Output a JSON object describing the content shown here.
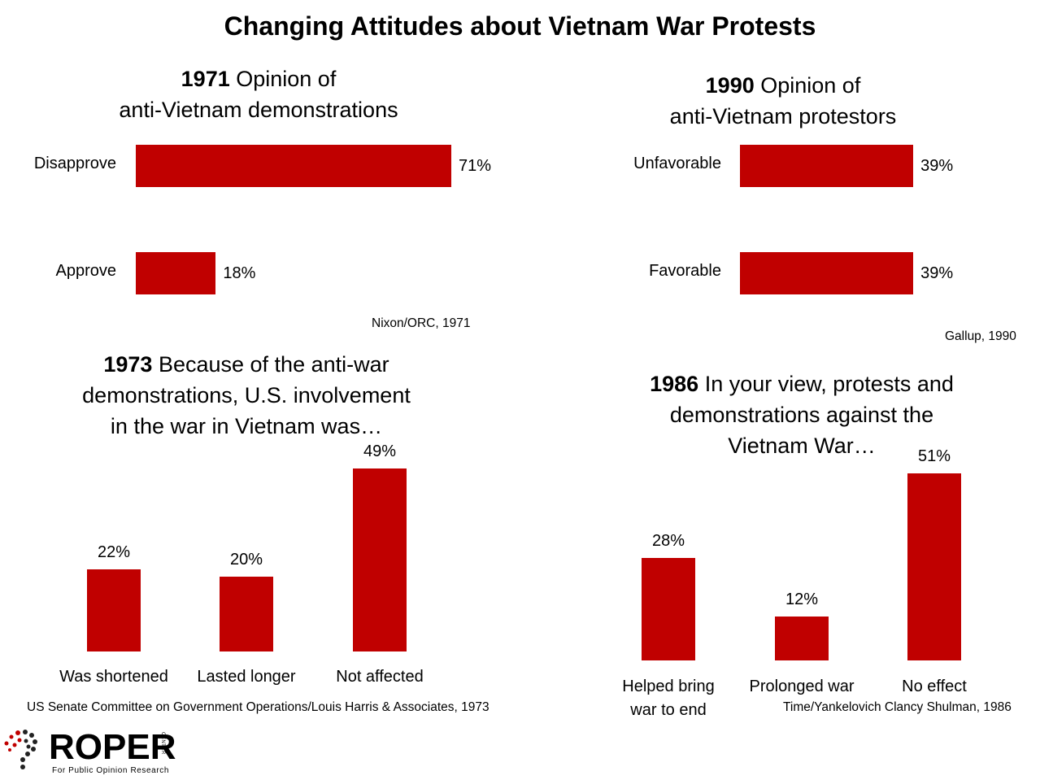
{
  "title": "Changing Attitudes about Vietnam War Protests",
  "colors": {
    "bar": "#c00000",
    "logo_dot_red": "#c00000",
    "logo_dot_dark": "#222222"
  },
  "chart_data": [
    {
      "type": "bar",
      "orientation": "horizontal",
      "year": "1971",
      "title_rest": " Opinion of",
      "title_line2": "anti-Vietnam demonstrations",
      "categories": [
        "Disapprove",
        "Approve"
      ],
      "values": [
        71,
        18
      ],
      "value_labels": [
        "71%",
        "18%"
      ],
      "source": "Nixon/ORC, 1971"
    },
    {
      "type": "bar",
      "orientation": "horizontal",
      "year": "1990",
      "title_rest": " Opinion of",
      "title_line2": "anti-Vietnam protestors",
      "categories": [
        "Unfavorable",
        "Favorable"
      ],
      "values": [
        39,
        39
      ],
      "value_labels": [
        "39%",
        "39%"
      ],
      "source": "Gallup, 1990"
    },
    {
      "type": "bar",
      "orientation": "vertical",
      "year": "1973",
      "title_rest": " Because of the anti-war",
      "title_line2": "demonstrations, U.S. involvement",
      "title_line3": "in the war in Vietnam was…",
      "categories": [
        "Was shortened",
        "Lasted longer",
        "Not affected"
      ],
      "values": [
        22,
        20,
        49
      ],
      "value_labels": [
        "22%",
        "20%",
        "49%"
      ],
      "source": "US Senate Committee on Government Operations/Louis Harris & Associates, 1973"
    },
    {
      "type": "bar",
      "orientation": "vertical",
      "year": "1986",
      "title_rest": " In your view, protests and",
      "title_line2": "demonstrations against the",
      "title_line3": "Vietnam War…",
      "categories": [
        "Helped bring war to end",
        "Prolonged war",
        "No effect"
      ],
      "category_lines": [
        [
          "Helped bring",
          "war to end"
        ],
        [
          "Prolonged war"
        ],
        [
          "No effect"
        ]
      ],
      "values": [
        28,
        12,
        51
      ],
      "value_labels": [
        "28%",
        "12%",
        "51%"
      ],
      "source": "Time/Yankelovich Clancy Shulman, 1986"
    }
  ],
  "logo": {
    "word": "ROPER",
    "side_text": "CENTER",
    "tagline": "For Public Opinion Research"
  }
}
